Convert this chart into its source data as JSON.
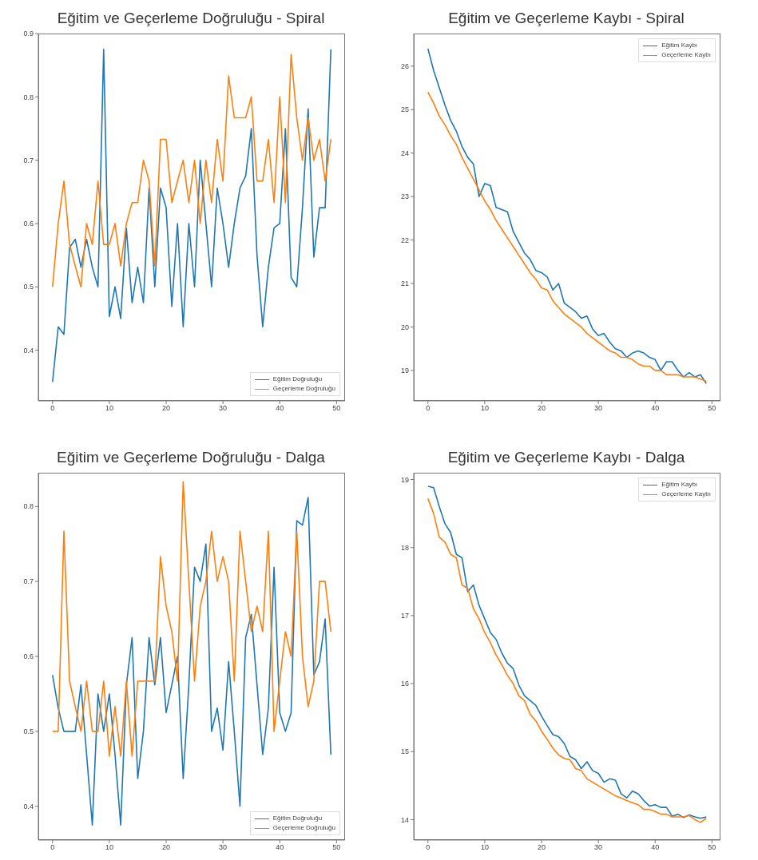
{
  "chart_data": [
    {
      "type": "line",
      "title": "Eğitim ve Geçerleme Doğruluğu - Spiral",
      "x": [
        0,
        1,
        2,
        3,
        4,
        5,
        6,
        7,
        8,
        9,
        10,
        11,
        12,
        13,
        14,
        15,
        16,
        17,
        18,
        19,
        20,
        21,
        22,
        23,
        24,
        25,
        26,
        27,
        28,
        29,
        30,
        31,
        32,
        33,
        34,
        35,
        36,
        37,
        38,
        39,
        40,
        41,
        42,
        43,
        44,
        45,
        46,
        47,
        48,
        49
      ],
      "xlim": [
        -2.5,
        51.5
      ],
      "xticks": [
        0,
        10,
        20,
        30,
        40,
        50
      ],
      "ylim": [
        0.32,
        0.9
      ],
      "yticks": [
        0.4,
        0.5,
        0.6,
        0.7,
        0.8,
        0.9
      ],
      "legend": "bottom right",
      "series": [
        {
          "name": "Eğitim Doğruluğu",
          "color": "#1f77b4",
          "values": [
            0.35,
            0.437,
            0.425,
            0.562,
            0.575,
            0.531,
            0.575,
            0.531,
            0.5,
            0.875,
            0.453,
            0.5,
            0.45,
            0.593,
            0.475,
            0.531,
            0.475,
            0.656,
            0.5,
            0.656,
            0.625,
            0.469,
            0.6,
            0.437,
            0.6,
            0.5,
            0.7,
            0.6,
            0.5,
            0.656,
            0.6,
            0.531,
            0.6,
            0.656,
            0.675,
            0.75,
            0.55,
            0.437,
            0.531,
            0.593,
            0.6,
            0.75,
            0.515,
            0.5,
            0.625,
            0.781,
            0.547,
            0.625,
            0.625,
            0.875
          ]
        },
        {
          "name": "Geçerleme Doğruluğu",
          "color": "#ff7f0e",
          "values": [
            0.5,
            0.6,
            0.667,
            0.567,
            0.533,
            0.5,
            0.6,
            0.567,
            0.667,
            0.567,
            0.567,
            0.6,
            0.533,
            0.6,
            0.633,
            0.633,
            0.7,
            0.667,
            0.533,
            0.733,
            0.733,
            0.633,
            0.667,
            0.7,
            0.633,
            0.7,
            0.6,
            0.7,
            0.633,
            0.733,
            0.667,
            0.833,
            0.767,
            0.767,
            0.767,
            0.8,
            0.667,
            0.667,
            0.733,
            0.633,
            0.8,
            0.633,
            0.867,
            0.767,
            0.7,
            0.767,
            0.7,
            0.733,
            0.667,
            0.733
          ]
        }
      ]
    },
    {
      "type": "line",
      "title": "Eğitim ve Geçerleme Kaybı - Spiral",
      "x": [
        0,
        1,
        2,
        3,
        4,
        5,
        6,
        7,
        8,
        9,
        10,
        11,
        12,
        13,
        14,
        15,
        16,
        17,
        18,
        19,
        20,
        21,
        22,
        23,
        24,
        25,
        26,
        27,
        28,
        29,
        30,
        31,
        32,
        33,
        34,
        35,
        36,
        37,
        38,
        39,
        40,
        41,
        42,
        43,
        44,
        45,
        46,
        47,
        48,
        49
      ],
      "xlim": [
        -2.5,
        51.5
      ],
      "xticks": [
        0,
        10,
        20,
        30,
        40,
        50
      ],
      "ylim": [
        18.3,
        26.75
      ],
      "yticks": [
        19,
        20,
        21,
        22,
        23,
        24,
        25,
        26
      ],
      "legend": "top right",
      "series": [
        {
          "name": "Eğitim Kaybı",
          "color": "#1f77b4",
          "values": [
            26.4,
            25.9,
            25.5,
            25.1,
            24.75,
            24.5,
            24.15,
            23.9,
            23.75,
            23.0,
            23.3,
            23.25,
            22.75,
            22.7,
            22.65,
            22.2,
            21.95,
            21.7,
            21.55,
            21.3,
            21.25,
            21.15,
            20.85,
            21.0,
            20.55,
            20.45,
            20.35,
            20.2,
            20.25,
            19.95,
            19.8,
            19.85,
            19.65,
            19.5,
            19.45,
            19.3,
            19.4,
            19.45,
            19.4,
            19.3,
            19.25,
            19.0,
            19.2,
            19.2,
            19.0,
            18.85,
            18.95,
            18.85,
            18.9,
            18.7
          ]
        },
        {
          "name": "Geçerleme Kaybı",
          "color": "#ff7f0e",
          "values": [
            25.4,
            25.15,
            24.85,
            24.65,
            24.4,
            24.2,
            23.9,
            23.65,
            23.4,
            23.15,
            22.9,
            22.7,
            22.45,
            22.25,
            22.05,
            21.85,
            21.65,
            21.45,
            21.25,
            21.1,
            20.9,
            20.85,
            20.6,
            20.45,
            20.3,
            20.2,
            20.1,
            20.0,
            19.85,
            19.75,
            19.65,
            19.55,
            19.45,
            19.4,
            19.3,
            19.3,
            19.25,
            19.15,
            19.1,
            19.1,
            19.0,
            19.0,
            18.9,
            18.9,
            18.9,
            18.85,
            18.85,
            18.85,
            18.8,
            18.75
          ]
        }
      ]
    },
    {
      "type": "line",
      "title": "Eğitim ve Geçerleme Doğruluğu - Dalga",
      "x": [
        0,
        1,
        2,
        3,
        4,
        5,
        6,
        7,
        8,
        9,
        10,
        11,
        12,
        13,
        14,
        15,
        16,
        17,
        18,
        19,
        20,
        21,
        22,
        23,
        24,
        25,
        26,
        27,
        28,
        29,
        30,
        31,
        32,
        33,
        34,
        35,
        36,
        37,
        38,
        39,
        40,
        41,
        42,
        43,
        44,
        45,
        46,
        47,
        48,
        49
      ],
      "xlim": [
        -2.5,
        51.5
      ],
      "xticks": [
        0,
        10,
        20,
        30,
        40,
        50
      ],
      "ylim": [
        0.355,
        0.845
      ],
      "yticks": [
        0.4,
        0.5,
        0.6,
        0.7,
        0.8
      ],
      "legend": "bottom right",
      "series": [
        {
          "name": "Eğitim Doğruluğu",
          "color": "#1f77b4",
          "values": [
            0.575,
            0.531,
            0.5,
            0.5,
            0.5,
            0.562,
            0.469,
            0.375,
            0.55,
            0.5,
            0.55,
            0.469,
            0.375,
            0.562,
            0.625,
            0.437,
            0.5,
            0.625,
            0.562,
            0.625,
            0.525,
            0.562,
            0.6,
            0.437,
            0.562,
            0.719,
            0.7,
            0.75,
            0.5,
            0.531,
            0.475,
            0.593,
            0.5,
            0.4,
            0.625,
            0.656,
            0.562,
            0.469,
            0.531,
            0.719,
            0.525,
            0.5,
            0.525,
            0.781,
            0.775,
            0.812,
            0.575,
            0.593,
            0.65,
            0.469
          ]
        },
        {
          "name": "Geçerleme Doğruluğu",
          "color": "#ff7f0e",
          "values": [
            0.5,
            0.5,
            0.767,
            0.567,
            0.533,
            0.5,
            0.567,
            0.5,
            0.5,
            0.567,
            0.467,
            0.533,
            0.467,
            0.567,
            0.467,
            0.567,
            0.567,
            0.567,
            0.567,
            0.733,
            0.667,
            0.633,
            0.567,
            0.833,
            0.7,
            0.567,
            0.667,
            0.7,
            0.767,
            0.7,
            0.733,
            0.7,
            0.567,
            0.767,
            0.7,
            0.633,
            0.667,
            0.633,
            0.767,
            0.5,
            0.567,
            0.633,
            0.6,
            0.767,
            0.6,
            0.533,
            0.567,
            0.7,
            0.7,
            0.633
          ]
        }
      ]
    },
    {
      "type": "line",
      "title": "Eğitim ve Geçerleme Kaybı - Dalga",
      "x": [
        0,
        1,
        2,
        3,
        4,
        5,
        6,
        7,
        8,
        9,
        10,
        11,
        12,
        13,
        14,
        15,
        16,
        17,
        18,
        19,
        20,
        21,
        22,
        23,
        24,
        25,
        26,
        27,
        28,
        29,
        30,
        31,
        32,
        33,
        34,
        35,
        36,
        37,
        38,
        39,
        40,
        41,
        42,
        43,
        44,
        45,
        46,
        47,
        48,
        49
      ],
      "xlim": [
        -2.5,
        51.5
      ],
      "xticks": [
        0,
        10,
        20,
        30,
        40,
        50
      ],
      "ylim": [
        13.7,
        19.1
      ],
      "yticks": [
        14,
        15,
        16,
        17,
        18,
        19
      ],
      "legend": "top right",
      "series": [
        {
          "name": "Eğitim Kaybı",
          "color": "#1f77b4",
          "values": [
            18.9,
            18.88,
            18.6,
            18.35,
            18.22,
            17.9,
            17.85,
            17.35,
            17.45,
            17.15,
            16.95,
            16.75,
            16.65,
            16.45,
            16.3,
            16.22,
            15.98,
            15.82,
            15.75,
            15.68,
            15.52,
            15.38,
            15.25,
            15.22,
            15.12,
            14.93,
            14.88,
            14.75,
            14.85,
            14.72,
            14.68,
            14.55,
            14.6,
            14.58,
            14.38,
            14.32,
            14.42,
            14.38,
            14.28,
            14.2,
            14.22,
            14.18,
            14.18,
            14.05,
            14.08,
            14.03,
            14.07,
            14.04,
            14.02,
            14.04
          ]
        },
        {
          "name": "Geçerleme Kaybı",
          "color": "#ff7f0e",
          "values": [
            18.72,
            18.5,
            18.15,
            18.08,
            17.9,
            17.85,
            17.45,
            17.4,
            17.1,
            16.95,
            16.75,
            16.6,
            16.42,
            16.28,
            16.12,
            16.0,
            15.82,
            15.75,
            15.55,
            15.45,
            15.3,
            15.18,
            15.05,
            14.95,
            14.9,
            14.88,
            14.75,
            14.72,
            14.6,
            14.55,
            14.5,
            14.45,
            14.4,
            14.35,
            14.32,
            14.28,
            14.25,
            14.22,
            14.15,
            14.15,
            14.12,
            14.08,
            14.08,
            14.04,
            14.04,
            14.04,
            14.06,
            14.0,
            13.96,
            14.02
          ]
        }
      ]
    }
  ]
}
